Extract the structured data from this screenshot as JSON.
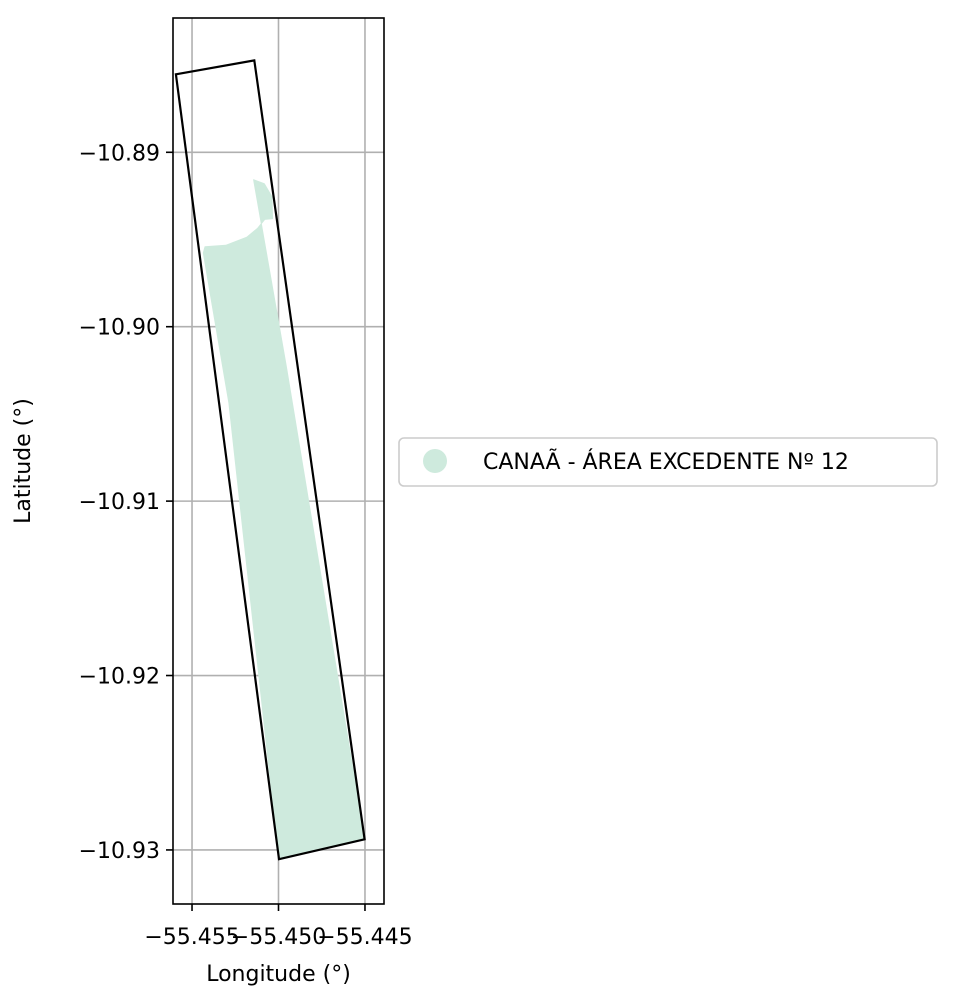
{
  "chart_data": {
    "type": "map",
    "xlabel": "Longitude (°)",
    "ylabel": "Latitude (°)",
    "xlim": [
      -55.4561,
      -55.4439
    ],
    "ylim": [
      -10.9331,
      -10.8823
    ],
    "x_ticks": [
      -55.455,
      -55.45,
      -55.445
    ],
    "x_tick_labels": [
      "−55.455",
      "−55.450",
      "−55.445"
    ],
    "y_ticks": [
      -10.89,
      -10.9,
      -10.91,
      -10.92,
      -10.93
    ],
    "y_tick_labels": [
      "−10.89",
      "−10.90",
      "−10.91",
      "−10.92",
      "−10.93"
    ],
    "grid": true,
    "legend": {
      "placement": "center-right outside",
      "entries": [
        {
          "label": "CANAÃ - ÁREA EXCEDENTE Nº 12",
          "color": "#ceeadd",
          "marker": "circle"
        }
      ]
    },
    "layers": [
      {
        "name": "CANAÃ - ÁREA EXCEDENTE Nº 12",
        "type": "polygon-fill",
        "color": "#ceeadd",
        "coordinates": [
          [
            -55.45144,
            -10.89157
          ],
          [
            -55.45082,
            -10.8918
          ],
          [
            -55.45038,
            -10.89254
          ],
          [
            -55.45034,
            -10.8938
          ],
          [
            -55.4508,
            -10.89385
          ],
          [
            -55.4512,
            -10.89435
          ],
          [
            -55.45183,
            -10.89487
          ],
          [
            -55.45305,
            -10.89533
          ],
          [
            -55.45425,
            -10.89542
          ],
          [
            -55.45435,
            -10.89577
          ],
          [
            -55.45287,
            -10.90438
          ],
          [
            -55.44997,
            -10.93053
          ],
          [
            -55.44502,
            -10.92939
          ],
          [
            -55.44955,
            -10.90227
          ],
          [
            -55.45144,
            -10.89157
          ]
        ]
      },
      {
        "name": "boundary",
        "type": "polygon-outline",
        "color": "#000000",
        "coordinates": [
          [
            -55.45593,
            -10.88553
          ],
          [
            -55.4514,
            -10.88473
          ],
          [
            -55.44502,
            -10.92939
          ],
          [
            -55.44997,
            -10.93053
          ],
          [
            -55.45593,
            -10.88553
          ]
        ]
      }
    ]
  }
}
